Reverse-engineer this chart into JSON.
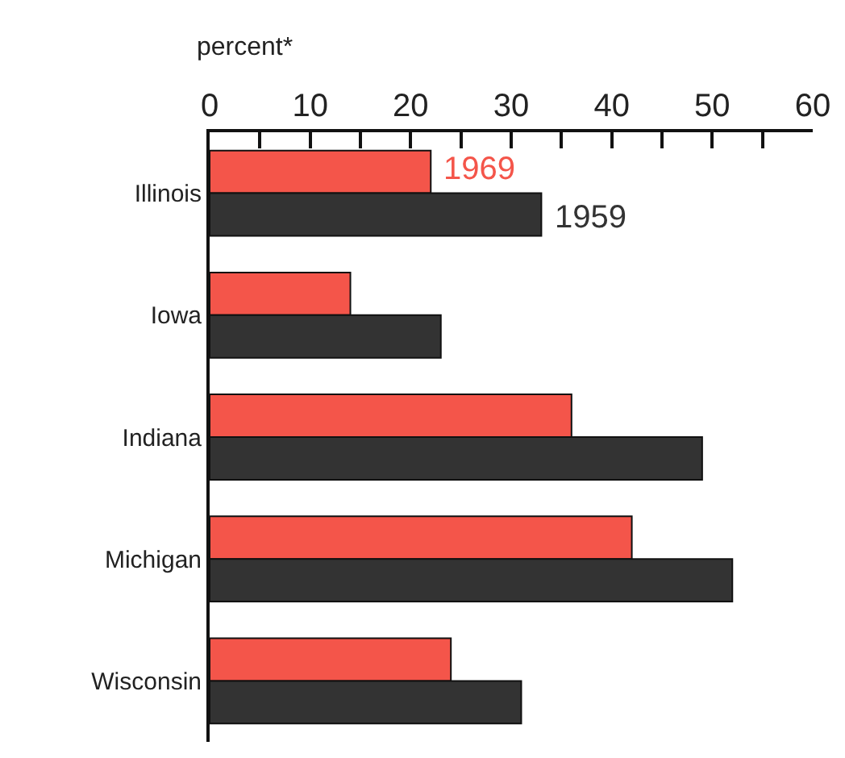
{
  "chart_data": {
    "type": "bar",
    "orientation": "horizontal",
    "xlabel": "percent*",
    "categories": [
      "Illinois",
      "Iowa",
      "Indiana",
      "Michigan",
      "Wisconsin"
    ],
    "series": [
      {
        "name": "1969",
        "color": "#f4554a",
        "values": [
          22,
          14,
          36,
          42,
          24
        ]
      },
      {
        "name": "1959",
        "color": "#333333",
        "values": [
          33,
          23,
          49,
          52,
          31
        ]
      }
    ],
    "xlim": [
      0,
      60
    ],
    "xticks": [
      0,
      {
        "value": 5,
        "label": null
      },
      10,
      {
        "value": 15,
        "label": null
      },
      20,
      {
        "value": 25,
        "label": null
      },
      30,
      {
        "value": 35,
        "label": null
      },
      40,
      {
        "value": 45,
        "label": null
      },
      50,
      {
        "value": 55,
        "label": null
      },
      60
    ],
    "grid": false
  }
}
